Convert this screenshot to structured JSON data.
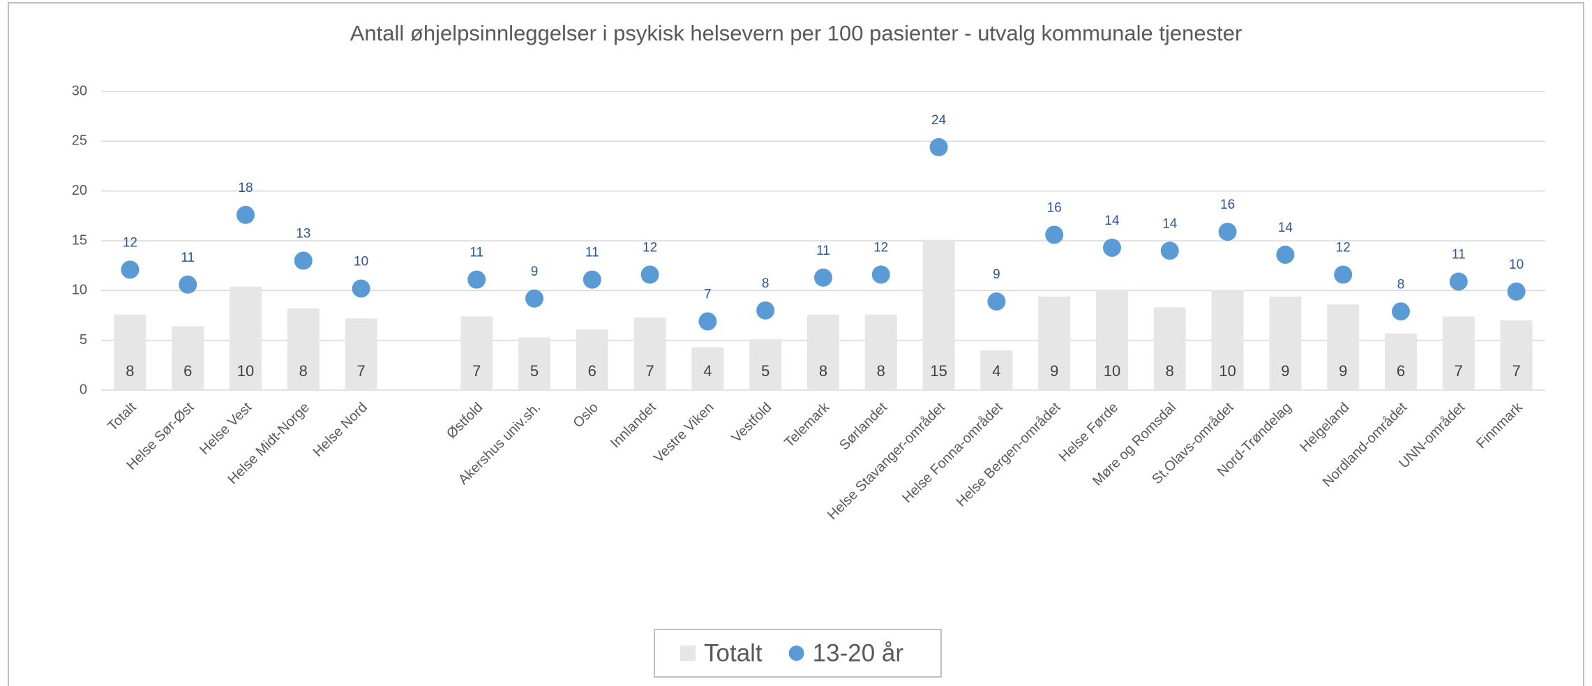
{
  "chart_data": {
    "type": "bar",
    "title": "Antall øhjelpsinnleggelser i psykisk helsevern per 100 pasienter - utvalg kommunale tjenester",
    "categories": [
      "Totalt",
      "Helse Sør-Øst",
      "Helse Vest",
      "Helse Midt-Norge",
      "Helse Nord",
      null,
      "Østfold",
      "Akershus univ.sh.",
      "Oslo",
      "Innlandet",
      "Vestre Viken",
      "Vestfold",
      "Telemark",
      "Sørlandet",
      "Helse Stavanger-området",
      "Helse Fonna-området",
      "Helse Bergen-området",
      "Helse Førde",
      "Møre og Romsdal",
      "St.Olavs-området",
      "Nord-Trøndelag",
      "Helgeland",
      "Nordland-området",
      "UNN-området",
      "Finnmark"
    ],
    "series": [
      {
        "name": "Totalt",
        "type": "bar",
        "color": "#e6e6e6",
        "values": [
          7.6,
          6.4,
          10.4,
          8.2,
          7.2,
          null,
          7.4,
          5.3,
          6.1,
          7.3,
          4.3,
          5.1,
          7.6,
          7.6,
          15.1,
          4.0,
          9.4,
          10.1,
          8.3,
          10.0,
          9.4,
          8.6,
          5.7,
          7.4,
          7.0
        ],
        "value_labels": [
          "8",
          "6",
          "10",
          "8",
          "7",
          null,
          "7",
          "5",
          "6",
          "7",
          "4",
          "5",
          "8",
          "8",
          "15",
          "4",
          "9",
          "10",
          "8",
          "10",
          "9",
          "9",
          "6",
          "7",
          "7"
        ]
      },
      {
        "name": "13-20 år",
        "type": "scatter",
        "color": "#5b9bd5",
        "values": [
          12.1,
          10.6,
          17.6,
          13.0,
          10.2,
          null,
          11.1,
          9.2,
          11.1,
          11.6,
          6.9,
          8.0,
          11.3,
          11.6,
          24.4,
          8.9,
          15.6,
          14.3,
          14.0,
          15.9,
          13.6,
          11.6,
          7.9,
          10.9,
          9.9
        ],
        "value_labels": [
          "12",
          "11",
          "18",
          "13",
          "10",
          null,
          "11",
          "9",
          "11",
          "12",
          "7",
          "8",
          "11",
          "12",
          "24",
          "9",
          "16",
          "14",
          "14",
          "16",
          "14",
          "12",
          "8",
          "11",
          "10"
        ]
      }
    ],
    "ylim": [
      0,
      30
    ],
    "yticks": [
      0,
      5,
      10,
      15,
      20,
      25,
      30
    ],
    "grid": true,
    "legend": "bottom"
  }
}
